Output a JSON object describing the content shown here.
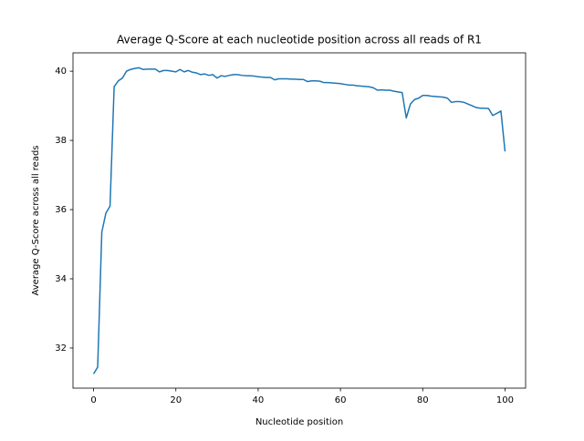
{
  "chart_data": {
    "type": "line",
    "title": "Average Q-Score at each nucleotide position across all reads of R1",
    "xlabel": "Nucleotide position",
    "ylabel": "Average Q-Score across all reads",
    "x": [
      0,
      1,
      2,
      3,
      4,
      5,
      6,
      7,
      8,
      9,
      10,
      11,
      12,
      13,
      14,
      15,
      16,
      17,
      18,
      19,
      20,
      21,
      22,
      23,
      24,
      25,
      26,
      27,
      28,
      29,
      30,
      31,
      32,
      33,
      34,
      35,
      36,
      37,
      38,
      39,
      40,
      41,
      42,
      43,
      44,
      45,
      46,
      47,
      48,
      49,
      50,
      51,
      52,
      53,
      54,
      55,
      56,
      57,
      58,
      59,
      60,
      61,
      62,
      63,
      64,
      65,
      66,
      67,
      68,
      69,
      70,
      71,
      72,
      73,
      74,
      75,
      76,
      77,
      78,
      79,
      80,
      81,
      82,
      83,
      84,
      85,
      86,
      87,
      88,
      89,
      90,
      91,
      92,
      93,
      94,
      95,
      96,
      97,
      98,
      99,
      100
    ],
    "values": [
      31.25,
      31.45,
      35.35,
      35.9,
      36.1,
      39.55,
      39.72,
      39.8,
      40.0,
      40.05,
      40.08,
      40.1,
      40.05,
      40.06,
      40.06,
      40.06,
      39.98,
      40.02,
      40.02,
      40.0,
      39.98,
      40.05,
      39.98,
      40.02,
      39.97,
      39.95,
      39.9,
      39.92,
      39.88,
      39.9,
      39.8,
      39.87,
      39.85,
      39.88,
      39.9,
      39.9,
      39.88,
      39.87,
      39.87,
      39.86,
      39.84,
      39.83,
      39.82,
      39.82,
      39.75,
      39.78,
      39.78,
      39.78,
      39.77,
      39.77,
      39.76,
      39.76,
      39.7,
      39.72,
      39.72,
      39.71,
      39.67,
      39.67,
      39.66,
      39.65,
      39.64,
      39.62,
      39.6,
      39.6,
      39.58,
      39.57,
      39.56,
      39.55,
      39.52,
      39.45,
      39.46,
      39.45,
      39.45,
      39.42,
      39.4,
      39.38,
      38.65,
      39.05,
      39.18,
      39.22,
      39.3,
      39.3,
      39.28,
      39.27,
      39.26,
      39.25,
      39.22,
      39.1,
      39.12,
      39.12,
      39.1,
      39.05,
      39.0,
      38.95,
      38.93,
      38.93,
      38.92,
      38.72,
      38.78,
      38.85,
      37.68
    ],
    "color": "#1f77b4",
    "xlim": [
      -5,
      105
    ],
    "ylim": [
      30.84,
      40.53
    ],
    "xticks": [
      0,
      20,
      40,
      60,
      80,
      100
    ],
    "yticks": [
      32,
      34,
      36,
      38,
      40
    ],
    "grid": false
  }
}
